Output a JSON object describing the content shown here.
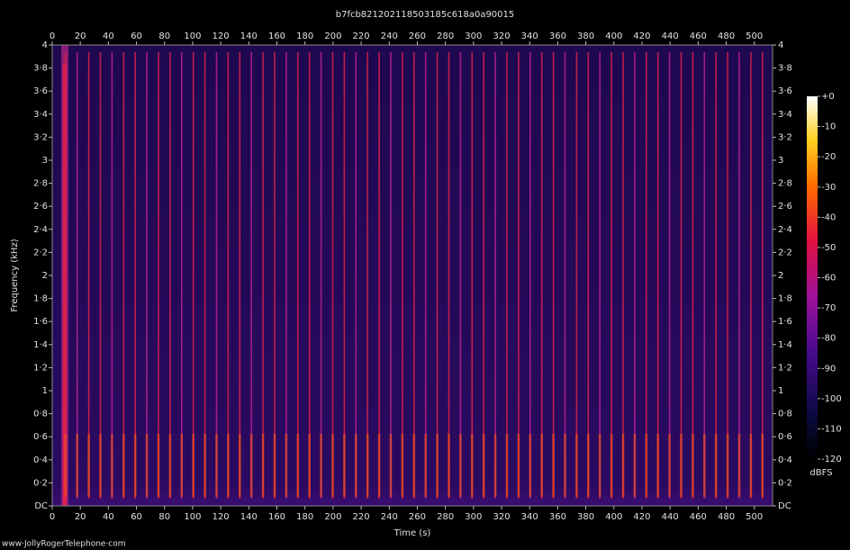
{
  "chart_data": {
    "type": "spectrogram",
    "title": "b7fcb821202118503185c618a0a90015",
    "x_label": "Time (s)",
    "y_label": "Frequency (kHz)",
    "xlim": [
      0,
      513
    ],
    "xticks": [
      0,
      20,
      40,
      60,
      80,
      100,
      120,
      140,
      160,
      180,
      200,
      220,
      240,
      260,
      280,
      300,
      320,
      340,
      360,
      380,
      400,
      420,
      440,
      460,
      480,
      500
    ],
    "ylim": [
      0,
      4
    ],
    "yticks": [
      {
        "value": 0,
        "label": "DC"
      },
      {
        "value": 0.2,
        "label": "0·2"
      },
      {
        "value": 0.4,
        "label": "0·4"
      },
      {
        "value": 0.6,
        "label": "0·6"
      },
      {
        "value": 0.8,
        "label": "0·8"
      },
      1,
      {
        "value": 1.2,
        "label": "1·2"
      },
      {
        "value": 1.4,
        "label": "1·4"
      },
      {
        "value": 1.6,
        "label": "1·6"
      },
      {
        "value": 1.8,
        "label": "1·8"
      },
      2,
      {
        "value": 2.2,
        "label": "2·2"
      },
      {
        "value": 2.4,
        "label": "2·4"
      },
      {
        "value": 2.6,
        "label": "2·6"
      },
      {
        "value": 2.8,
        "label": "2·8"
      },
      3,
      {
        "value": 3.2,
        "label": "3·2"
      },
      {
        "value": 3.4,
        "label": "3·4"
      },
      {
        "value": 3.6,
        "label": "3·6"
      },
      {
        "value": 3.8,
        "label": "3·8"
      },
      4
    ],
    "colorbar": {
      "label": "dBFS",
      "lim": [
        -120,
        0
      ],
      "ticks": [
        {
          "value": 0,
          "label": "+0"
        },
        -10,
        -20,
        -30,
        -40,
        -50,
        -60,
        -70,
        -80,
        -90,
        -100,
        -110,
        -120
      ]
    },
    "footer": "www·JollyRogerTelephone·com"
  }
}
